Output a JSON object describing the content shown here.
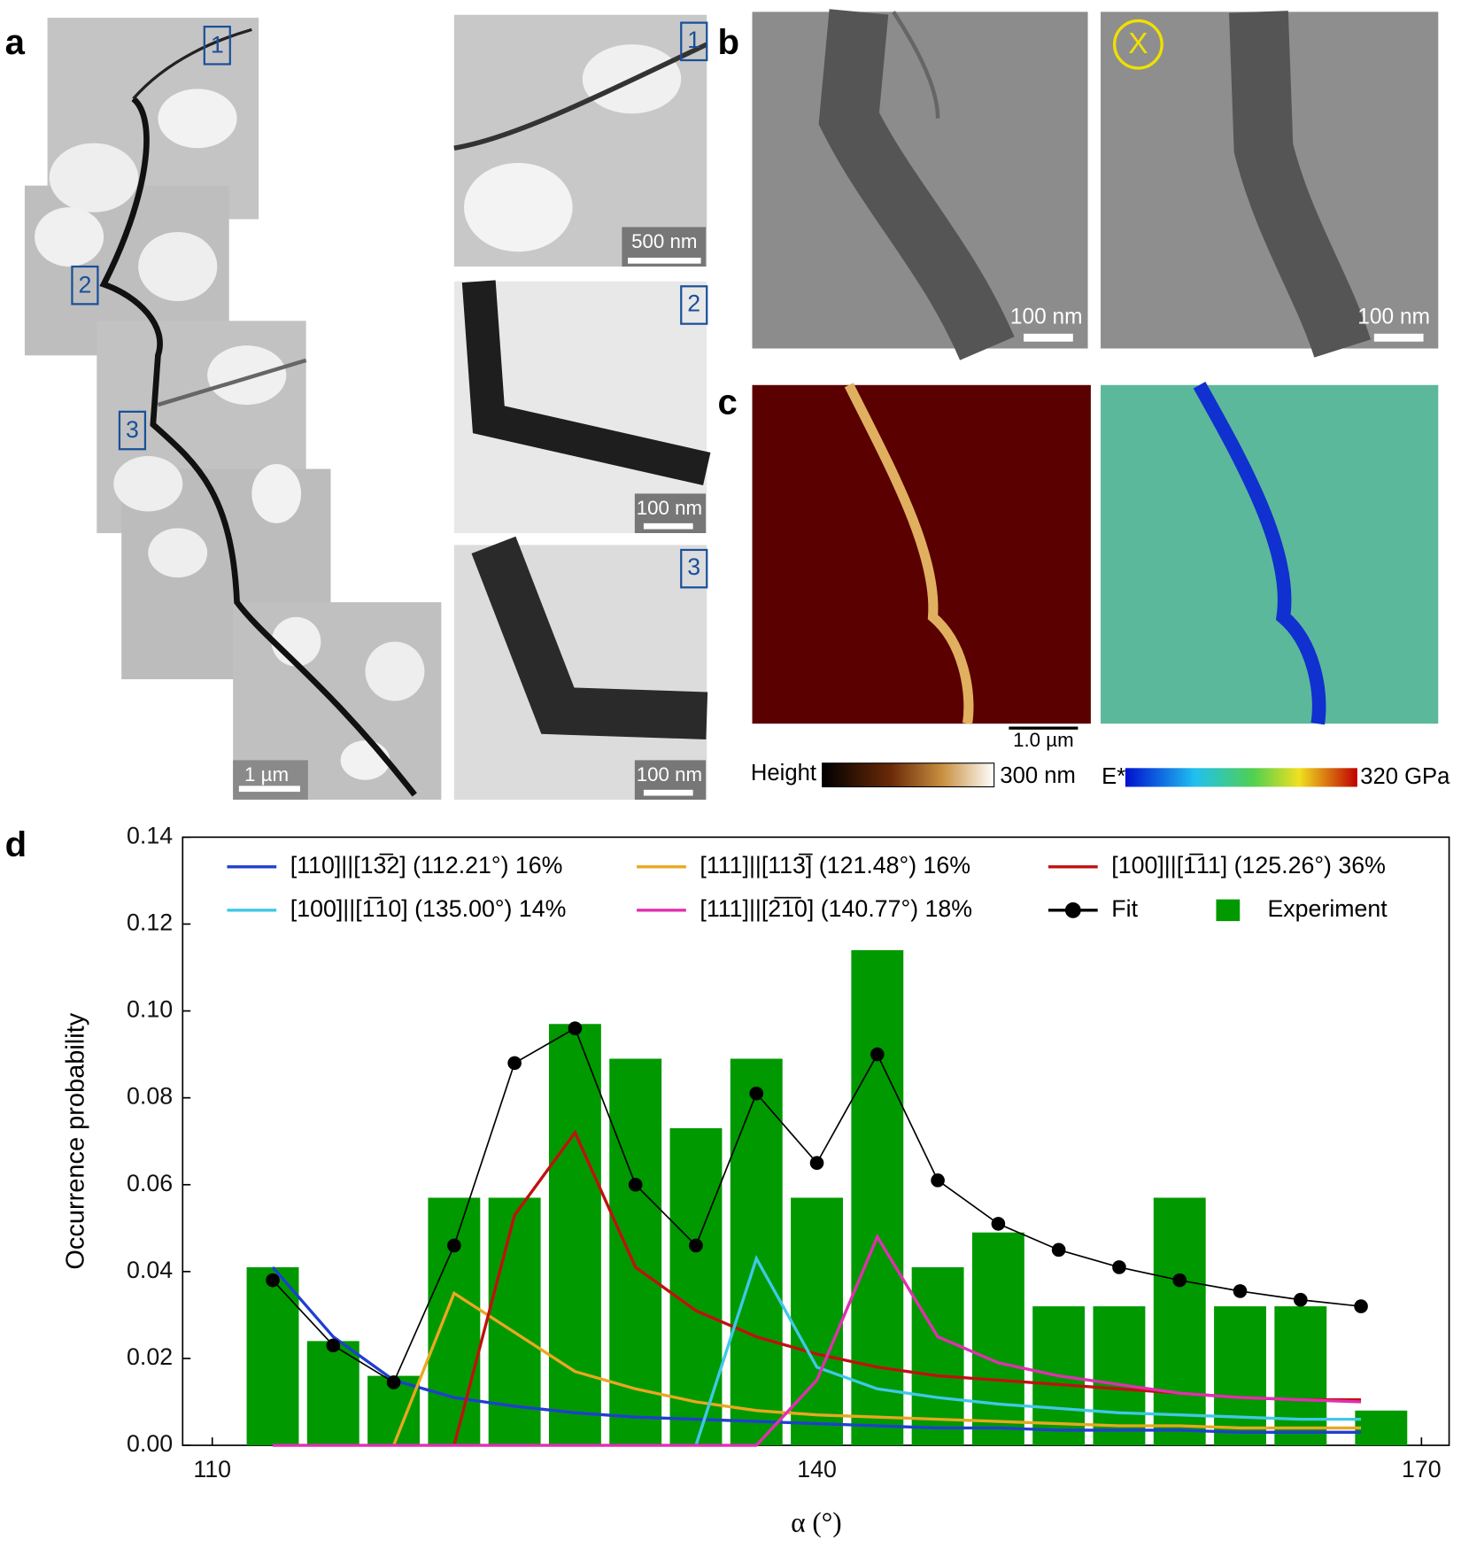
{
  "panels": {
    "a": {
      "label": "a",
      "markers": [
        "1",
        "2",
        "3"
      ],
      "inset_markers": [
        "1",
        "2",
        "3"
      ],
      "scale_bars": [
        "1 µm",
        "500 nm",
        "100 nm",
        "100 nm"
      ]
    },
    "b": {
      "label": "b",
      "marker": "X",
      "scale_bars": [
        "100 nm",
        "100 nm"
      ]
    },
    "c": {
      "label": "c",
      "scale_bar": "1.0 µm",
      "height_label": "Height",
      "height_max": "300 nm",
      "modulus_label": "E*",
      "modulus_max": "320 GPa"
    },
    "d": {
      "label": "d"
    }
  },
  "chart_data": {
    "type": "bar",
    "xlabel": "α (°)",
    "ylabel": "Occurrence probability",
    "xlim": [
      110,
      170
    ],
    "xticks": [
      110,
      140,
      170
    ],
    "ylim": [
      0,
      0.14
    ],
    "yticks": [
      {
        "value": 0,
        "label": "0.00"
      },
      {
        "value": 0.02,
        "label": "0.02"
      },
      {
        "value": 0.04,
        "label": "0.04"
      },
      {
        "value": 0.06,
        "label": "0.06"
      },
      {
        "value": 0.08,
        "label": "0.08"
      },
      {
        "value": 0.1,
        "label": "0.10"
      },
      {
        "value": 0.12,
        "label": "0.12"
      },
      {
        "value": 0.14,
        "label": "0.14"
      }
    ],
    "series": [
      {
        "name": "[110]||[13̅2] (112.21°) 16%",
        "type": "line",
        "color": "#1f3fd0",
        "x": [
          113,
          116,
          119,
          122,
          125,
          128,
          131,
          134,
          137,
          140,
          143,
          146,
          149,
          152,
          155,
          158,
          161,
          164,
          167
        ],
        "values": [
          0.041,
          0.025,
          0.015,
          0.011,
          0.009,
          0.0075,
          0.0065,
          0.006,
          0.0055,
          0.005,
          0.0045,
          0.004,
          0.004,
          0.0035,
          0.0035,
          0.0035,
          0.003,
          0.003,
          0.003
        ]
      },
      {
        "name": "[111]||[113̅] (121.48°) 16%",
        "type": "line",
        "color": "#e8a820",
        "x": [
          113,
          116,
          119,
          122,
          125,
          128,
          131,
          134,
          137,
          140,
          143,
          146,
          149,
          152,
          155,
          158,
          161,
          164,
          167
        ],
        "values": [
          null,
          null,
          0,
          0.035,
          0.026,
          0.017,
          0.013,
          0.01,
          0.008,
          0.007,
          0.0065,
          0.006,
          0.0055,
          0.005,
          0.0045,
          0.0045,
          0.004,
          0.004,
          0.004
        ]
      },
      {
        "name": "[100]||[1̅11] (125.26°) 36%",
        "type": "line",
        "color": "#c01010",
        "x": [
          113,
          116,
          119,
          122,
          125,
          128,
          131,
          134,
          137,
          140,
          143,
          146,
          149,
          152,
          155,
          158,
          161,
          164,
          167
        ],
        "values": [
          null,
          null,
          null,
          0,
          0.053,
          0.072,
          0.041,
          0.031,
          0.025,
          0.021,
          0.018,
          0.016,
          0.015,
          0.014,
          0.013,
          0.012,
          0.011,
          0.0105,
          0.0105
        ]
      },
      {
        "name": "[100]||[1̅10] (135.00°) 14%",
        "type": "line",
        "color": "#40c8e8",
        "x": [
          113,
          116,
          119,
          122,
          125,
          128,
          131,
          134,
          137,
          140,
          143,
          146,
          149,
          152,
          155,
          158,
          161,
          164,
          167
        ],
        "values": [
          null,
          null,
          null,
          null,
          null,
          null,
          null,
          0,
          0.043,
          0.018,
          0.013,
          0.011,
          0.0095,
          0.0085,
          0.0075,
          0.007,
          0.0065,
          0.006,
          0.006
        ]
      },
      {
        "name": "[111]||[2̅1̅0] (140.77°) 18%",
        "type": "line",
        "color": "#e030b0",
        "x": [
          113,
          116,
          119,
          122,
          125,
          128,
          131,
          134,
          137,
          140,
          143,
          146,
          149,
          152,
          155,
          158,
          161,
          164,
          167
        ],
        "values": [
          0,
          0,
          0,
          0,
          0,
          0,
          0,
          0,
          0,
          0.015,
          0.048,
          0.025,
          0.019,
          0.016,
          0.014,
          0.012,
          0.011,
          0.0105,
          0.01
        ]
      },
      {
        "name": "Fit",
        "type": "line",
        "markers": true,
        "color": "#000000",
        "x": [
          113,
          116,
          119,
          122,
          125,
          128,
          131,
          134,
          137,
          140,
          143,
          146,
          149,
          152,
          155,
          158,
          161,
          164,
          167
        ],
        "values": [
          0.038,
          0.023,
          0.0145,
          0.046,
          0.088,
          0.096,
          0.06,
          0.046,
          0.081,
          0.065,
          0.09,
          0.061,
          0.051,
          0.045,
          0.041,
          0.038,
          0.0355,
          0.0335,
          0.032
        ]
      },
      {
        "name": "Experiment",
        "type": "bar",
        "color": "#009900",
        "x": [
          113,
          116,
          119,
          122,
          125,
          128,
          131,
          134,
          137,
          140,
          143,
          146,
          149,
          152,
          155,
          158,
          161,
          164,
          168
        ],
        "values": [
          0.041,
          0.024,
          0.016,
          0.057,
          0.057,
          0.097,
          0.089,
          0.073,
          0.089,
          0.057,
          0.114,
          0.041,
          0.049,
          0.032,
          0.032,
          0.057,
          0.032,
          0.032,
          0.008
        ]
      }
    ]
  }
}
